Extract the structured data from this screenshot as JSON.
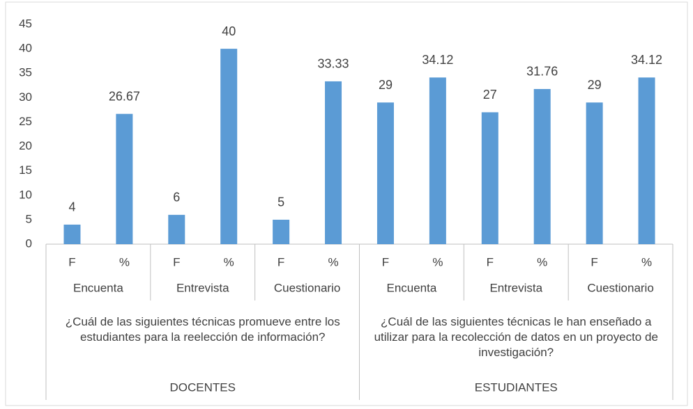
{
  "chart_data": {
    "type": "bar",
    "categories": [
      "F",
      "%",
      "F",
      "%",
      "F",
      "%",
      "F",
      "%",
      "F",
      "%",
      "F",
      "%"
    ],
    "values": [
      4,
      26.67,
      6,
      40,
      5,
      33.33,
      29,
      34.12,
      27,
      31.76,
      29,
      34.12
    ],
    "groups": [
      {
        "name": "DOCENTES",
        "question": "¿Cuál de las siguientes técnicas promueve entre los estudiantes para la reelección de información?",
        "techniques": [
          "Encuenta",
          "Entrevista",
          "Cuestionario"
        ]
      },
      {
        "name": "ESTUDIANTES",
        "question": "¿Cuál de las siguientes técnicas le han enseñado a utilizar para la recolección de datos en un proyecto de investigación?",
        "techniques": [
          "Encuenta",
          "Entrevista",
          "Cuestionario"
        ]
      }
    ],
    "color": "#5b9bd5",
    "data_labels": true,
    "ylim": [
      0,
      45
    ],
    "yticks": [
      0,
      5,
      10,
      15,
      20,
      25,
      30,
      35,
      40,
      45
    ],
    "grid": false
  }
}
